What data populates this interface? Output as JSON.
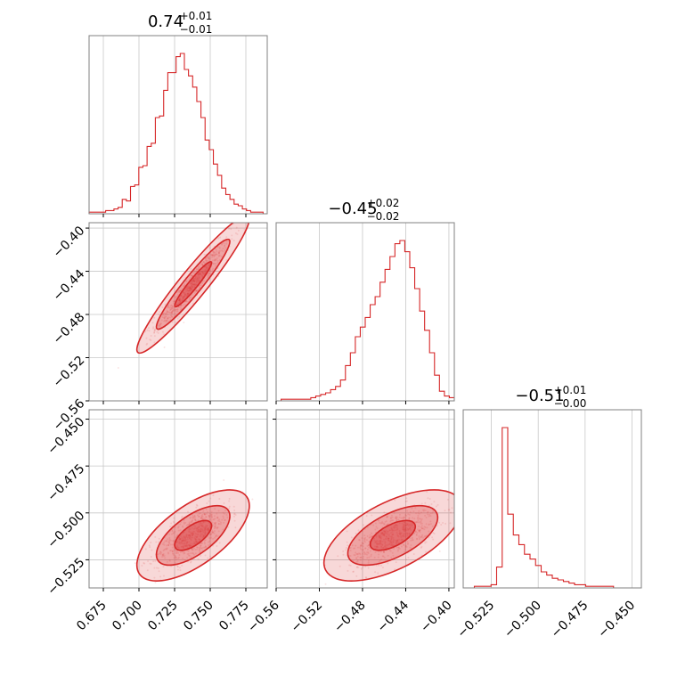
{
  "chart_data": {
    "type": "corner",
    "color": "#d62728",
    "parameters": [
      {
        "title_main": "0.74",
        "title_up": "+0.01",
        "title_down": "−0.01",
        "range": [
          0.665,
          0.79
        ],
        "ticks": [
          0.675,
          0.7,
          0.725,
          0.75,
          0.775
        ],
        "tick_labels": [
          "0.675",
          "0.700",
          "0.725",
          "0.750",
          "0.775"
        ],
        "hist": [
          1,
          1,
          1,
          1,
          2,
          2,
          3,
          4,
          9,
          8,
          17,
          18,
          29,
          30,
          42,
          44,
          60,
          61,
          77,
          88,
          88,
          98,
          100,
          90,
          86,
          79,
          70,
          60,
          46,
          40,
          31,
          24,
          16,
          12,
          9,
          6,
          5,
          3,
          2,
          1,
          1,
          1,
          0
        ]
      },
      {
        "title_main": "−0.45",
        "title_up": "+0.02",
        "title_down": "−0.02",
        "range": [
          -0.56,
          -0.395
        ],
        "ticks": [
          -0.56,
          -0.52,
          -0.48,
          -0.44,
          -0.4
        ],
        "tick_labels": [
          "−0.56",
          "−0.52",
          "−0.48",
          "−0.44",
          "−0.40"
        ],
        "hist": [
          0,
          1,
          1,
          1,
          1,
          1,
          1,
          2,
          3,
          4,
          5,
          7,
          9,
          13,
          22,
          30,
          40,
          46,
          52,
          60,
          65,
          74,
          82,
          90,
          98,
          100,
          93,
          83,
          70,
          56,
          44,
          30,
          16,
          6,
          3,
          2
        ]
      },
      {
        "title_main": "−0.51",
        "title_up": "+0.01",
        "title_down": "−0.00",
        "range": [
          -0.54,
          -0.445
        ],
        "ticks": [
          -0.525,
          -0.5,
          -0.475,
          -0.45
        ],
        "tick_labels": [
          "−0.525",
          "−0.500",
          "−0.475",
          "−0.450"
        ],
        "hist": [
          0,
          0,
          1,
          1,
          1,
          2,
          13,
          100,
          46,
          33,
          27,
          21,
          18,
          14,
          10,
          8,
          6,
          5,
          4,
          3,
          2,
          2,
          1,
          1,
          1,
          1,
          1,
          0,
          0,
          0,
          0,
          0
        ]
      }
    ],
    "corr_0_1": {
      "mean_x": 0.738,
      "mean_y": -0.452,
      "sd_x": 0.013,
      "sd_y": 0.021,
      "rho": 0.95
    },
    "corr_0_2": {
      "mean_x": 0.738,
      "mean_y": -0.512,
      "sd_x": 0.013,
      "sd_y": 0.008,
      "rho": 0.65
    },
    "corr_1_2": {
      "mean_x": -0.452,
      "mean_y": -0.512,
      "sd_x": 0.021,
      "sd_y": 0.008,
      "rho": 0.6
    },
    "levels": [
      0.39,
      0.86,
      0.99
    ]
  }
}
